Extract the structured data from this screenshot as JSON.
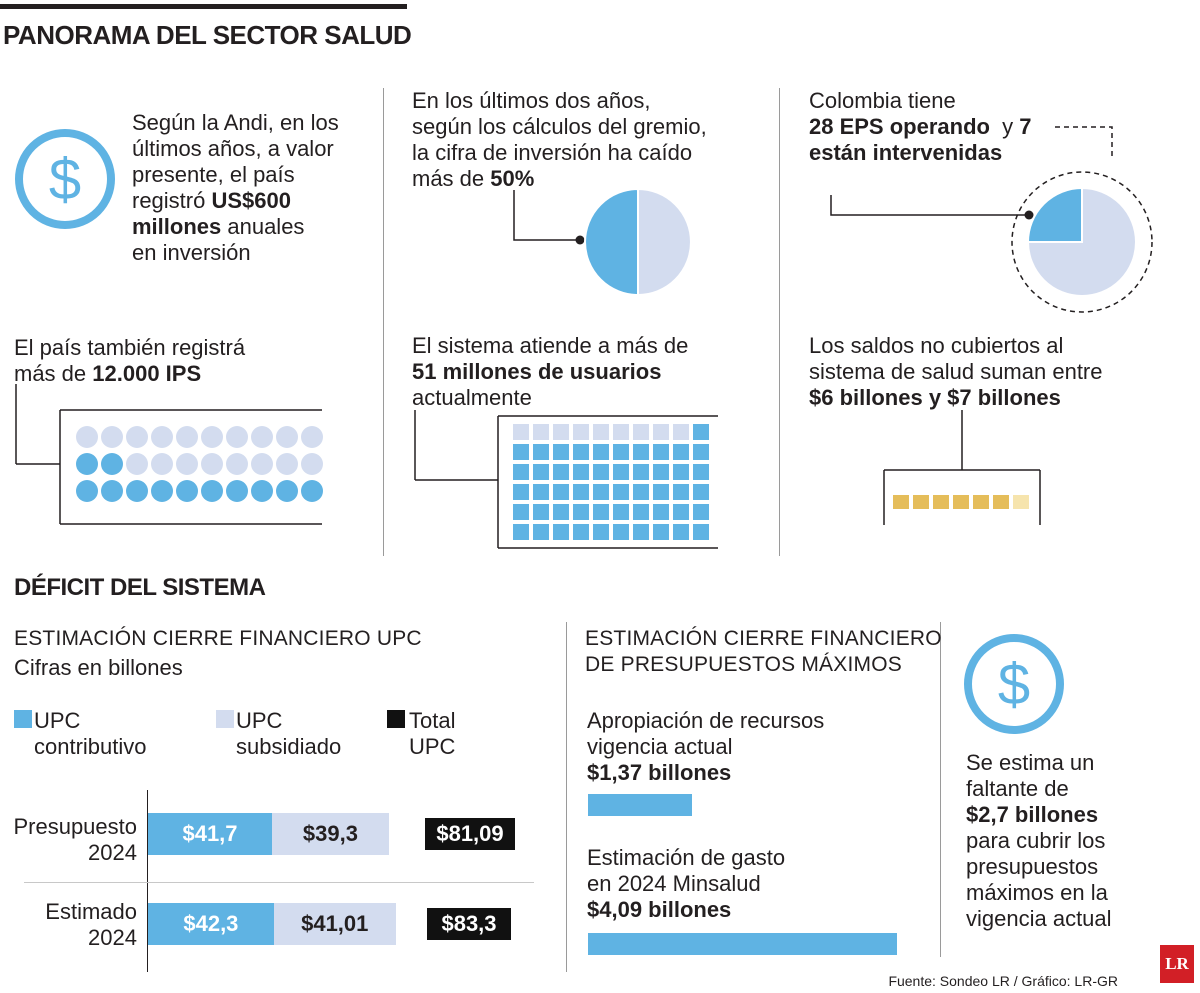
{
  "title": "PANORAMA DEL SECTOR SALUD",
  "panel1": {
    "line1": "Según la Andi, en los",
    "line2": "últimos años, a valor",
    "line3": "presente, el país",
    "line4_pre": "registró ",
    "line4_bold": "US$600",
    "line5_bold": "millones",
    "line5_post": " anuales",
    "line6": "en inversión"
  },
  "panel2": {
    "line1": "En los últimos dos años,",
    "line2": "según los cálculos del gremio,",
    "line3": "la cifra de inversión ha caído",
    "line4_pre": "más de ",
    "line4_bold": "50%"
  },
  "panel3": {
    "line1": "Colombia tiene",
    "line2_bold": "28 EPS operando",
    "line2_mid": "  y ",
    "line2_bold2": "7",
    "line3_bold": "están intervenidas"
  },
  "panel4": {
    "line1": "El país también registrá",
    "line2_pre": "más de ",
    "line2_bold": "12.000 IPS"
  },
  "panel5": {
    "line1": "El sistema atiende a más de",
    "line2_bold": "51 millones de usuarios",
    "line3": "actualmente"
  },
  "panel6": {
    "line1": "Los saldos no cubiertos al",
    "line2": "sistema de salud suman entre",
    "line3_bold": "$6 billones y $7 billones"
  },
  "section2_title": "DÉFICIT DEL SISTEMA",
  "colors": {
    "blue": "#5fb3e3",
    "light_blue": "#d3dcef",
    "yellow": "#e5bd5a",
    "light_yellow": "#f6e4ad",
    "black": "#111111"
  },
  "chart_data": [
    {
      "type": "bar",
      "title": "ESTIMACIÓN CIERRE FINANCIERO UPC",
      "subtitle": "Cifras en billones",
      "legend": [
        "UPC contributivo",
        "UPC subsidiado",
        "Total UPC"
      ],
      "legend_l1": [
        "UPC",
        "UPC",
        "Total"
      ],
      "legend_l2": [
        "contributivo",
        "subsidiado",
        "UPC"
      ],
      "categories_l1": [
        "Presupuesto",
        "Estimado"
      ],
      "categories_l2": [
        "2024",
        "2024"
      ],
      "series": [
        {
          "name": "UPC contributivo",
          "values": [
            41.7,
            42.3
          ],
          "labels": [
            "$41,7",
            "$42,3"
          ]
        },
        {
          "name": "UPC subsidiado",
          "values": [
            39.3,
            41.01
          ],
          "labels": [
            "$39,3",
            "$41,01"
          ]
        }
      ],
      "totals": [
        81.09,
        83.3
      ],
      "total_labels": [
        "$81,09",
        "$83,3"
      ]
    },
    {
      "type": "bar",
      "title_l1": "ESTIMACIÓN CIERRE FINANCIERO",
      "title_l2": "DE PRESUPUESTOS MÁXIMOS",
      "bars": [
        {
          "l1": "Apropiación de recursos",
          "l2": "vigencia actual",
          "value_label": "$1,37 billones",
          "value": 1.37
        },
        {
          "l1": "Estimación de gasto",
          "l2": "en 2024 Minsalud",
          "value_label": "$4,09 billones",
          "value": 4.09
        }
      ]
    },
    {
      "type": "pie",
      "slices": [
        50,
        50
      ],
      "label": "50%"
    },
    {
      "type": "pie",
      "slices": [
        7,
        21
      ],
      "labels": [
        "7",
        "28 EPS"
      ]
    },
    {
      "type": "table",
      "kind": "dot-grid",
      "rows": 3,
      "cols": 10,
      "filled": 12
    },
    {
      "type": "table",
      "kind": "waffle",
      "rows": 6,
      "cols": 10,
      "filled": 51
    },
    {
      "type": "table",
      "kind": "segments",
      "count": 7,
      "filled": 6
    }
  ],
  "side": {
    "l1": "Se estima un",
    "l2": "faltante de",
    "l3_bold": "$2,7 billones",
    "l4": "para cubrir los",
    "l5": "presupuestos",
    "l6": "máximos en la",
    "l7": "vigencia actual"
  },
  "source": "Fuente: Sondeo LR / Gráfico: LR-GR",
  "logo": "LR"
}
